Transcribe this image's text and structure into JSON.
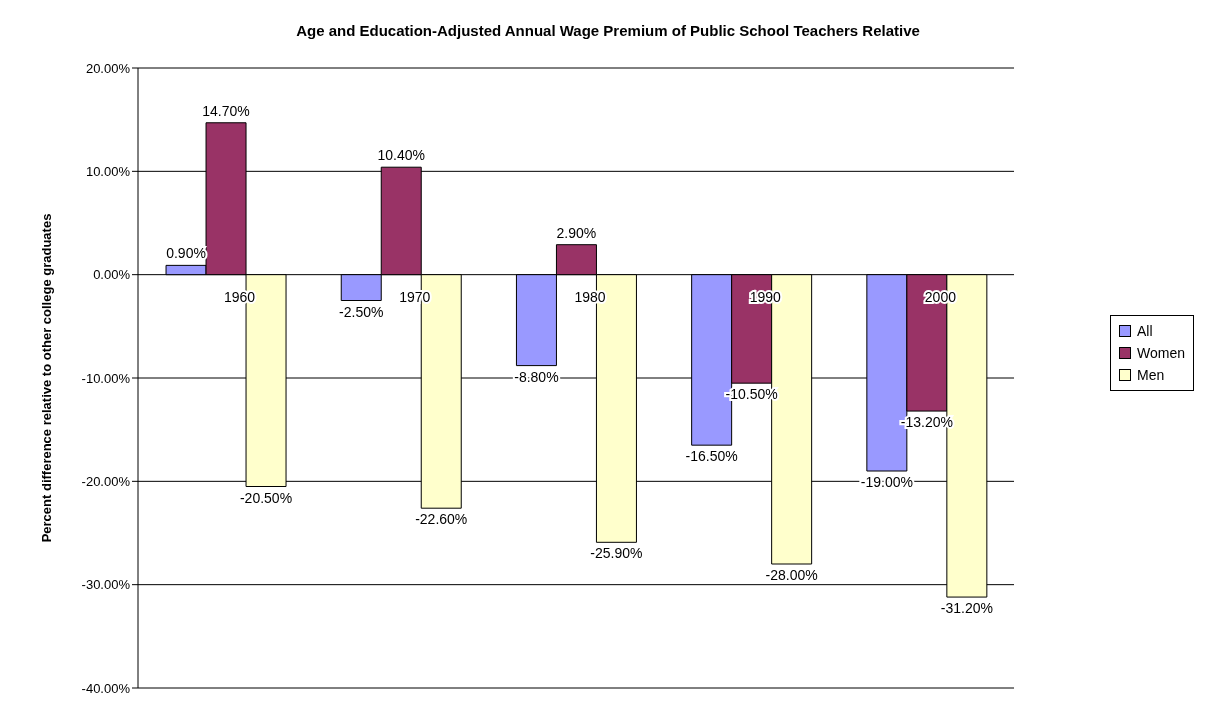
{
  "chart_data": {
    "type": "bar",
    "title": "Age and Education-Adjusted Annual Wage Premium of Public School Teachers Relative",
    "ylabel": "Percent difference relative to other college graduates",
    "categories": [
      "1960",
      "1970",
      "1980",
      "1990",
      "2000"
    ],
    "series": [
      {
        "name": "All",
        "color": "#9999ff",
        "values": [
          0.9,
          -2.5,
          -8.8,
          -16.5,
          -19.0
        ],
        "value_labels": [
          "0.90%",
          "-2.50%",
          "-8.80%",
          "-16.50%",
          "-19.00%"
        ]
      },
      {
        "name": "Women",
        "color": "#993366",
        "values": [
          14.7,
          10.4,
          2.9,
          -10.5,
          -13.2
        ],
        "value_labels": [
          "14.70%",
          "10.40%",
          "2.90%",
          "-10.50%",
          "-13.20%"
        ]
      },
      {
        "name": "Men",
        "color": "#ffffcc",
        "values": [
          -20.5,
          -22.6,
          -25.9,
          -28.0,
          -31.2
        ],
        "value_labels": [
          "-20.50%",
          "-22.60%",
          "-25.90%",
          "-28.00%",
          "-31.20%"
        ]
      }
    ],
    "ylim": [
      -40,
      20
    ],
    "yticks": [
      {
        "value": -40,
        "label": "-40.00%"
      },
      {
        "value": -30,
        "label": "-30.00%"
      },
      {
        "value": -20,
        "label": "-20.00%"
      },
      {
        "value": -10,
        "label": "-10.00%"
      },
      {
        "value": 0,
        "label": "0.00%"
      },
      {
        "value": 10,
        "label": "10.00%"
      },
      {
        "value": 20,
        "label": "20.00%"
      }
    ],
    "grid": "y",
    "legend": "right"
  }
}
